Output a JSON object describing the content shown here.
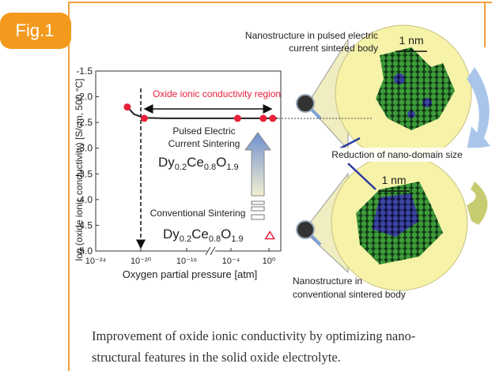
{
  "figure_label": "Fig.1",
  "chart_data": {
    "type": "scatter",
    "ylabel": "log (oxide ionic conductivity) [S/cm, 500 °C]",
    "xlabel": "Oxygen partial pressure [atm]",
    "ylim": [
      -5.0,
      -1.5
    ],
    "yticks": [
      {
        "value": -5,
        "label": "-5.0"
      },
      -4.5,
      {
        "value": -4,
        "label": "-4.0"
      },
      -3.5,
      {
        "value": -3,
        "label": "-3.0"
      },
      -2.5,
      {
        "value": -2,
        "label": "-2.0"
      },
      -1.5
    ],
    "xlim": [
      -24,
      1.25
    ],
    "xticks": [
      {
        "value": -24,
        "label": "10⁻²⁴"
      },
      {
        "value": -20,
        "label": "10⁻²⁰"
      },
      {
        "value": -16,
        "label": "10⁻¹⁶"
      },
      {
        "value": -4,
        "label": "10⁻⁴"
      },
      {
        "value": 0,
        "label": "10⁰"
      }
    ],
    "series": [
      {
        "marker": "line",
        "color": "#222222",
        "x": [
          -21.2,
          -20.6,
          -19.7,
          -18,
          -16,
          -4,
          0.9
        ],
        "values": [
          -2.2,
          -2.34,
          -2.41,
          -2.42,
          -2.42,
          -2.42,
          -2.42
        ]
      },
      {
        "marker": "circle",
        "color": "#e8203a",
        "x": [
          -21.2,
          -19.7,
          -3.3,
          -0.6,
          0.4
        ],
        "values": [
          -2.2,
          -2.42,
          -2.42,
          -2.42,
          -2.42
        ]
      },
      {
        "marker": "triangle",
        "color": "#e8203a",
        "x": [
          0.1
        ],
        "values": [
          -4.7
        ]
      }
    ],
    "annotations": {
      "region": "Oxide ionic conductivity region",
      "pulsed": [
        "Pulsed Electric",
        "Current Sintering"
      ],
      "conventional": "Conventional Sintering",
      "formula": [
        "Dy",
        "0.2",
        "Ce",
        "0.8",
        "O",
        "1.9"
      ]
    }
  },
  "diagram": {
    "pulsed_title": [
      "Nanostructure in pulsed electric",
      "current sintered body"
    ],
    "scale_top": "1 nm",
    "scale_bottom": "1 nm",
    "reduction": "Reduction of nano-domain size",
    "conventional_title": [
      "Nanostructure in",
      "conventional sintered body"
    ]
  },
  "caption": [
    "Improvement of oxide ionic conductivity by optimizing nano-",
    "structural features in the solid oxide electrolyte."
  ]
}
